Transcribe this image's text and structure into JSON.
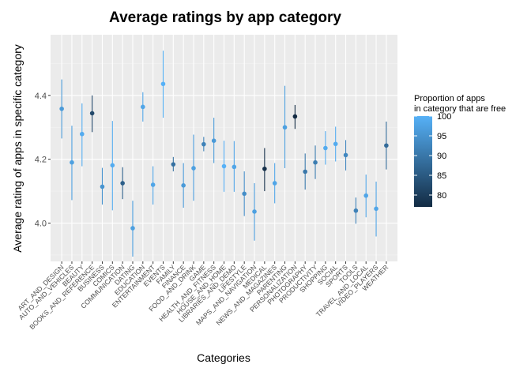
{
  "chart_data": {
    "type": "scatter",
    "title": "Average ratings by app category",
    "xlabel": "Categories",
    "ylabel": "Average rating of apps in specific category",
    "ylim": [
      3.88,
      4.59
    ],
    "yticks": [
      4.0,
      4.2,
      4.4
    ],
    "grid": true,
    "legend": {
      "title_lines": [
        "Proportion of apps",
        "in category that are free"
      ],
      "position": "right",
      "range": [
        77,
        100
      ],
      "ticks": [
        80,
        85,
        90,
        95,
        100
      ],
      "colors": {
        "low": "#132B43",
        "high": "#56B1F7"
      }
    },
    "points": [
      {
        "category": "ART_AND_DESIGN",
        "mean": 4.358,
        "lo": 4.265,
        "hi": 4.45,
        "free": 96
      },
      {
        "category": "AUTO_AND_VEHICLES",
        "mean": 4.19,
        "lo": 4.072,
        "hi": 4.305,
        "free": 97
      },
      {
        "category": "BEAUTY",
        "mean": 4.279,
        "lo": 4.178,
        "hi": 4.375,
        "free": 99
      },
      {
        "category": "BOOKS_AND_REFERENCE",
        "mean": 4.344,
        "lo": 4.285,
        "hi": 4.4,
        "free": 82
      },
      {
        "category": "BUSINESS",
        "mean": 4.114,
        "lo": 4.058,
        "hi": 4.173,
        "free": 95
      },
      {
        "category": "COMICS",
        "mean": 4.181,
        "lo": 4.04,
        "hi": 4.32,
        "free": 99
      },
      {
        "category": "COMMUNICATION",
        "mean": 4.125,
        "lo": 4.075,
        "hi": 4.175,
        "free": 86
      },
      {
        "category": "DATING",
        "mean": 3.984,
        "lo": 3.895,
        "hi": 4.07,
        "free": 97
      },
      {
        "category": "EDUCATION",
        "mean": 4.364,
        "lo": 4.318,
        "hi": 4.41,
        "free": 98
      },
      {
        "category": "ENTERTAINMENT",
        "mean": 4.12,
        "lo": 4.058,
        "hi": 4.178,
        "free": 98
      },
      {
        "category": "EVENTS",
        "mean": 4.436,
        "lo": 4.33,
        "hi": 4.54,
        "free": 100
      },
      {
        "category": "FAMILY",
        "mean": 4.184,
        "lo": 4.162,
        "hi": 4.207,
        "free": 89
      },
      {
        "category": "FINANCE",
        "mean": 4.118,
        "lo": 4.048,
        "hi": 4.188,
        "free": 96
      },
      {
        "category": "FOOD_AND_DRINK",
        "mean": 4.172,
        "lo": 4.07,
        "hi": 4.277,
        "free": 97
      },
      {
        "category": "GAME",
        "mean": 4.247,
        "lo": 4.225,
        "hi": 4.27,
        "free": 92
      },
      {
        "category": "HEALTH_AND_FITNESS",
        "mean": 4.258,
        "lo": 4.188,
        "hi": 4.33,
        "free": 96
      },
      {
        "category": "HOUSE_AND_HOME",
        "mean": 4.178,
        "lo": 4.098,
        "hi": 4.258,
        "free": 100
      },
      {
        "category": "LIBRARIES_AND_DEMO",
        "mean": 4.176,
        "lo": 4.098,
        "hi": 4.257,
        "free": 98
      },
      {
        "category": "LIFESTYLE",
        "mean": 4.092,
        "lo": 4.022,
        "hi": 4.162,
        "free": 94
      },
      {
        "category": "MAPS_AND_NAVIGATION",
        "mean": 4.036,
        "lo": 3.945,
        "hi": 4.125,
        "free": 97
      },
      {
        "category": "MEDICAL",
        "mean": 4.17,
        "lo": 4.1,
        "hi": 4.235,
        "free": 78
      },
      {
        "category": "NEWS_AND_MAGAZINES",
        "mean": 4.125,
        "lo": 4.062,
        "hi": 4.188,
        "free": 98
      },
      {
        "category": "PARENTING",
        "mean": 4.3,
        "lo": 4.172,
        "hi": 4.43,
        "free": 97
      },
      {
        "category": "PERSONALIZATION",
        "mean": 4.334,
        "lo": 4.295,
        "hi": 4.37,
        "free": 77
      },
      {
        "category": "PHOTOGRAPHY",
        "mean": 4.161,
        "lo": 4.105,
        "hi": 4.218,
        "free": 90
      },
      {
        "category": "PRODUCTIVITY",
        "mean": 4.19,
        "lo": 4.138,
        "hi": 4.243,
        "free": 91
      },
      {
        "category": "SHOPPING",
        "mean": 4.235,
        "lo": 4.183,
        "hi": 4.288,
        "free": 99
      },
      {
        "category": "SOCIAL",
        "mean": 4.248,
        "lo": 4.193,
        "hi": 4.302,
        "free": 99
      },
      {
        "category": "SPORTS",
        "mean": 4.213,
        "lo": 4.165,
        "hi": 4.26,
        "free": 93
      },
      {
        "category": "TOOLS",
        "mean": 4.039,
        "lo": 3.998,
        "hi": 4.08,
        "free": 92
      },
      {
        "category": "TRAVEL_AND_LOCAL",
        "mean": 4.086,
        "lo": 4.018,
        "hi": 4.152,
        "free": 98
      },
      {
        "category": "VIDEO_PLAYERS",
        "mean": 4.045,
        "lo": 3.958,
        "hi": 4.13,
        "free": 98
      },
      {
        "category": "WEATHER",
        "mean": 4.243,
        "lo": 4.168,
        "hi": 4.318,
        "free": 88
      }
    ]
  }
}
